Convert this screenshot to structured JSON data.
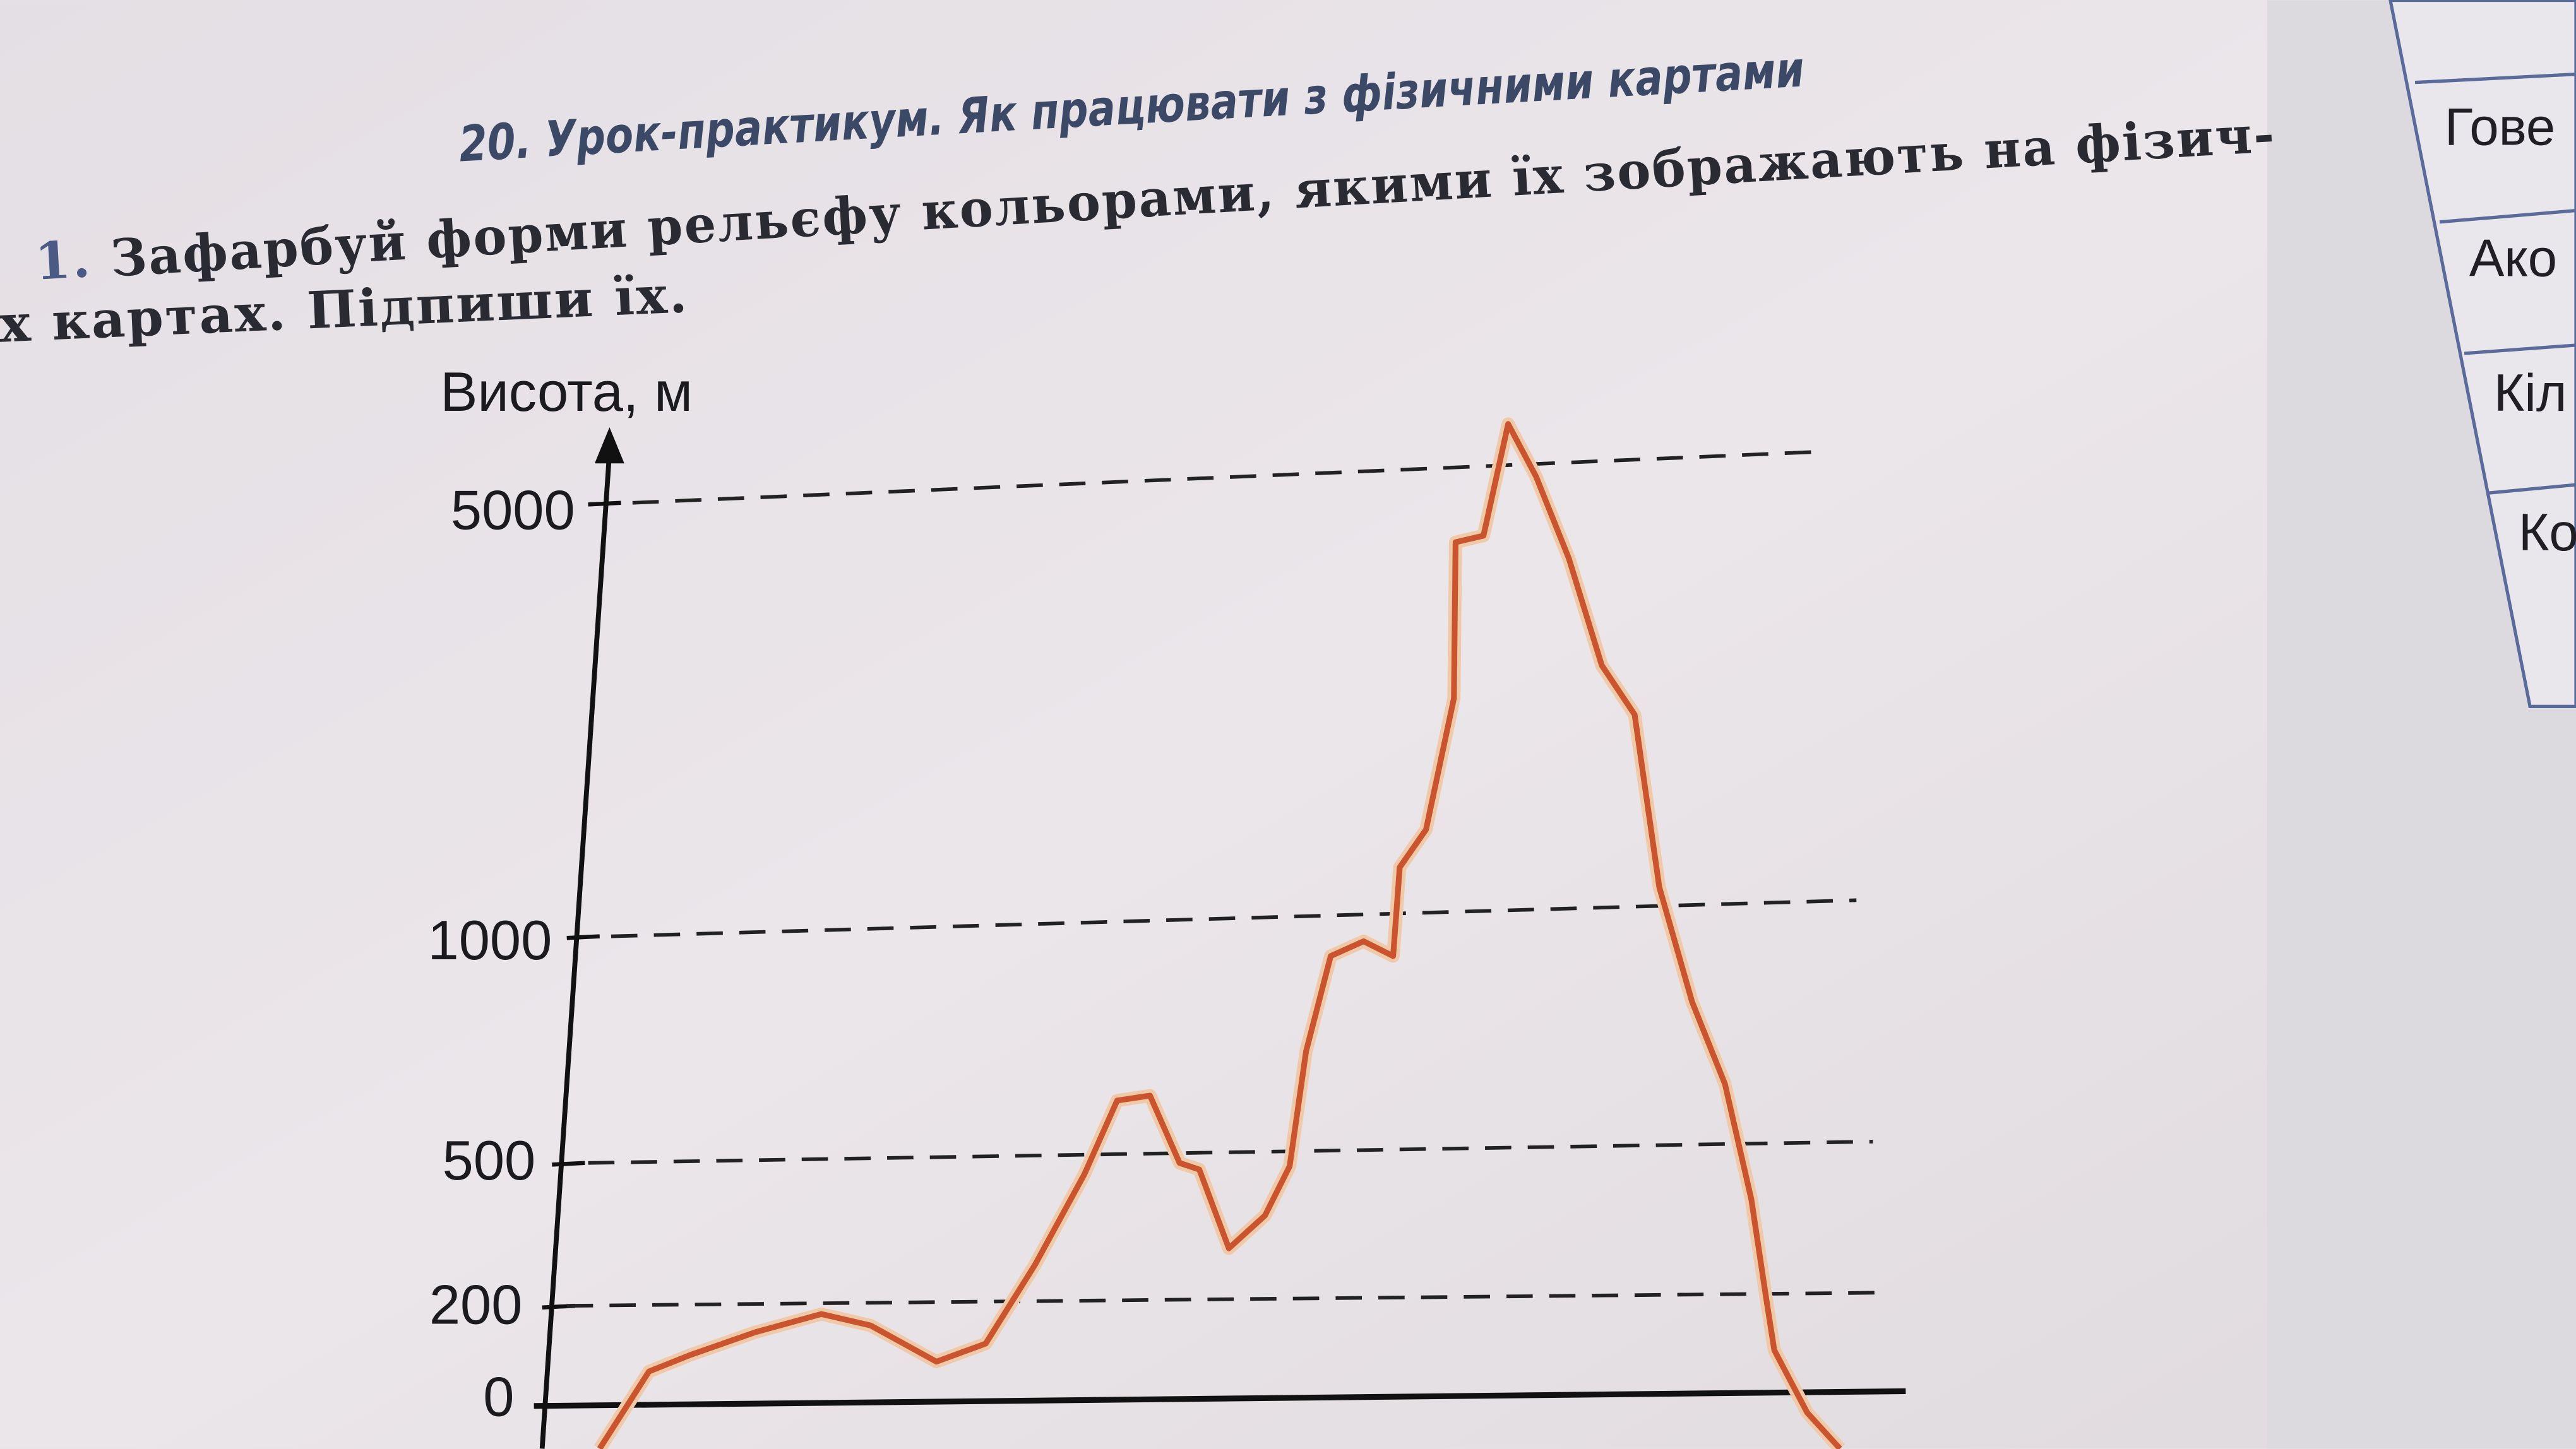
{
  "header": {
    "title": "20. Урок-практикум. Як працювати з фізичними картами"
  },
  "task": {
    "number": "1.",
    "lines": [
      "Зафарбуй форми рельєфу кольорами, якими їх зображають на фізич-",
      "х картах. Підпиши їх."
    ]
  },
  "chart": {
    "y_label": "Висота, м",
    "tick_labels": [
      "5000",
      "1000",
      "500",
      "200",
      "0"
    ]
  },
  "side_tabs": [
    "Гове",
    "Ако",
    "Кіл",
    "Ко"
  ]
}
